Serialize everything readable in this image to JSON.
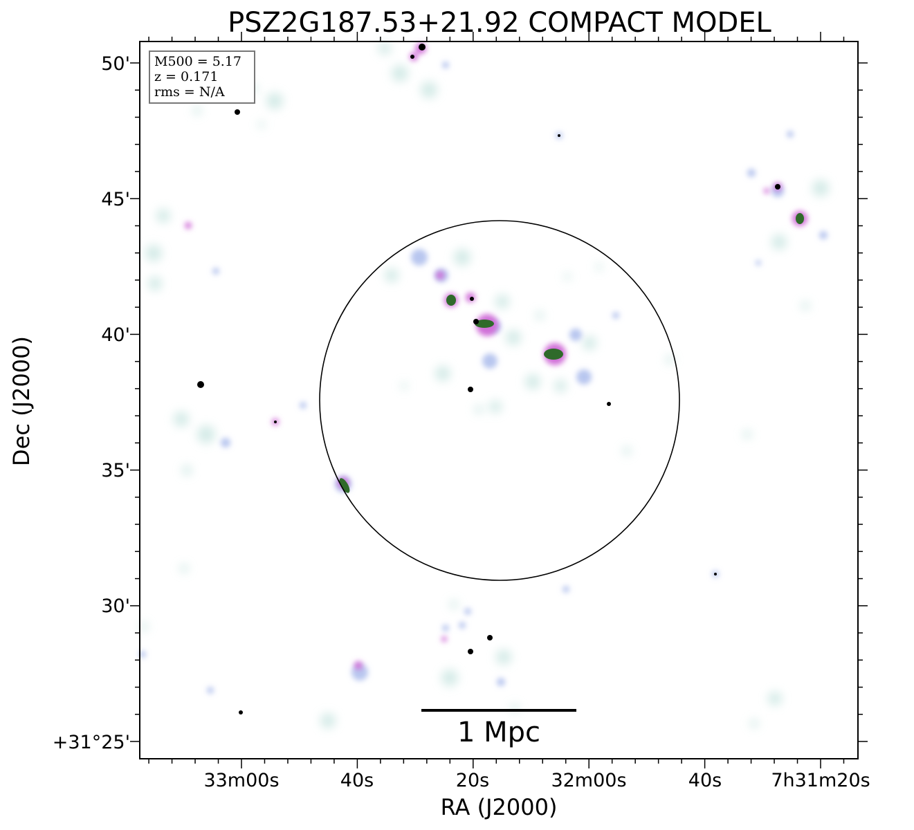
{
  "title": "PSZ2G187.53+21.92 COMPACT MODEL",
  "x_axis": {
    "label": "RA (J2000)",
    "ticks": [
      "33m00s",
      "40s",
      "20s",
      "32m00s",
      "40s",
      "7h31m20s"
    ]
  },
  "y_axis": {
    "label": "Dec (J2000)",
    "ticks": [
      "50'",
      "45'",
      "40'",
      "35'",
      "30'",
      "+31°25'"
    ]
  },
  "info_box": {
    "line1": "M500 = 5.17",
    "line2": "z = 0.171",
    "line3": "rms = N/A"
  },
  "scale_bar": {
    "label": "1 Mpc"
  },
  "colors": {
    "faint": "#cfe8e4",
    "mid": "#b8c6ef",
    "strong": "#d070d8",
    "core": "#2f6a2a",
    "peak": "#000000"
  }
}
